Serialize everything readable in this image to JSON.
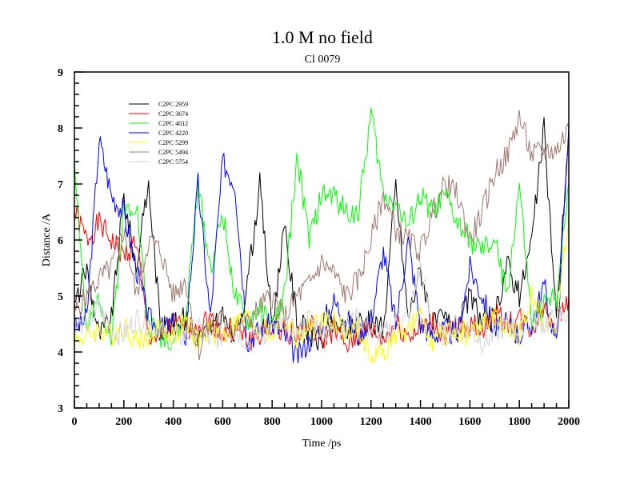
{
  "chart_data": {
    "type": "line",
    "title": "1.0 M no field",
    "subtitle": "Cl 0079",
    "xlabel": "Time /ps",
    "ylabel": "Distance /A",
    "xlim": [
      0,
      2000
    ],
    "ylim": [
      3,
      9
    ],
    "xticks": [
      0,
      200,
      400,
      600,
      800,
      1000,
      1200,
      1400,
      1600,
      1800,
      2000
    ],
    "yticks": [
      3,
      4,
      5,
      6,
      7,
      8,
      9
    ],
    "grid": false,
    "legend_position": "top-left",
    "x": [
      0,
      50,
      100,
      150,
      200,
      250,
      300,
      350,
      400,
      450,
      500,
      550,
      600,
      650,
      700,
      750,
      800,
      850,
      900,
      950,
      1000,
      1050,
      1100,
      1150,
      1200,
      1250,
      1300,
      1350,
      1400,
      1450,
      1500,
      1550,
      1600,
      1650,
      1700,
      1750,
      1800,
      1850,
      1900,
      1950,
      2000
    ],
    "series": [
      {
        "name": "C2PC 2959",
        "color": "#000000",
        "values": [
          4.8,
          5.5,
          4.3,
          4.6,
          6.8,
          5.5,
          7.0,
          4.4,
          4.5,
          4.6,
          4.3,
          4.4,
          4.6,
          4.3,
          5.2,
          7.0,
          4.5,
          6.2,
          4.6,
          4.3,
          4.2,
          4.5,
          4.4,
          4.6,
          4.5,
          4.4,
          7.0,
          4.6,
          5.5,
          4.5,
          4.6,
          4.4,
          5.0,
          4.5,
          4.6,
          5.6,
          5.0,
          6.0,
          8.0,
          4.6,
          8.0
        ]
      },
      {
        "name": "C2PC 3674",
        "color": "#ff0000",
        "values": [
          6.5,
          6.0,
          6.3,
          6.0,
          5.7,
          6.0,
          4.3,
          4.2,
          4.5,
          4.4,
          4.5,
          4.6,
          4.3,
          4.4,
          4.2,
          4.3,
          4.5,
          4.4,
          4.3,
          4.5,
          4.2,
          4.4,
          4.1,
          4.3,
          4.4,
          4.2,
          4.5,
          4.3,
          4.4,
          4.5,
          4.3,
          4.4,
          4.5,
          4.4,
          4.7,
          4.5,
          4.6,
          4.4,
          4.8,
          4.5,
          5.0
        ]
      },
      {
        "name": "C2PC 4012",
        "color": "#00ff00",
        "values": [
          7.5,
          4.3,
          5.0,
          4.2,
          6.5,
          6.7,
          4.5,
          4.3,
          4.2,
          4.6,
          7.0,
          5.5,
          6.5,
          5.0,
          4.5,
          4.8,
          4.4,
          5.0,
          7.5,
          6.0,
          6.8,
          6.8,
          6.5,
          6.5,
          8.3,
          6.8,
          6.7,
          6.2,
          6.8,
          6.5,
          6.8,
          6.3,
          6.0,
          5.8,
          6.0,
          5.0,
          7.0,
          4.5,
          4.8,
          5.0,
          7.0
        ]
      },
      {
        "name": "C2PC 4220",
        "color": "#0000ff",
        "values": [
          4.4,
          4.6,
          7.8,
          6.8,
          6.5,
          5.5,
          4.6,
          4.4,
          4.5,
          4.3,
          7.0,
          4.6,
          7.4,
          7.0,
          4.2,
          4.4,
          4.5,
          4.3,
          3.9,
          4.2,
          4.5,
          4.9,
          4.6,
          4.3,
          4.6,
          5.8,
          4.5,
          6.0,
          4.5,
          4.3,
          4.4,
          4.3,
          5.5,
          5.0,
          4.4,
          4.5,
          4.3,
          4.5,
          5.2,
          4.1,
          8.0
        ]
      },
      {
        "name": "C2PC 5299",
        "color": "#ffff00",
        "values": [
          4.2,
          4.3,
          4.4,
          4.3,
          4.5,
          4.2,
          4.3,
          4.4,
          4.3,
          4.5,
          4.2,
          4.4,
          4.3,
          4.5,
          4.6,
          4.4,
          4.3,
          4.6,
          4.2,
          4.4,
          4.5,
          4.6,
          4.3,
          4.4,
          3.9,
          4.0,
          4.3,
          4.4,
          4.6,
          4.2,
          4.3,
          4.4,
          4.3,
          4.5,
          4.6,
          4.4,
          4.3,
          5.0,
          4.6,
          4.4,
          6.5
        ]
      },
      {
        "name": "C2PC 5494",
        "color": "#a07870",
        "values": [
          4.7,
          5.0,
          5.3,
          5.5,
          6.2,
          5.0,
          6.0,
          5.8,
          5.0,
          5.3,
          4.0,
          4.5,
          4.6,
          4.4,
          4.5,
          4.8,
          5.0,
          4.6,
          5.0,
          5.2,
          5.6,
          5.4,
          5.0,
          5.3,
          6.0,
          6.8,
          6.2,
          6.0,
          5.8,
          6.5,
          7.0,
          6.8,
          6.0,
          6.5,
          7.2,
          7.5,
          8.2,
          7.5,
          7.6,
          7.6,
          8.0
        ]
      },
      {
        "name": "C2PC 5754",
        "color": "#d3d3d3",
        "values": [
          4.6,
          4.5,
          4.8,
          4.4,
          4.3,
          4.6,
          4.5,
          4.4,
          4.2,
          4.3,
          4.4,
          4.2,
          4.3,
          4.4,
          4.2,
          4.3,
          4.4,
          4.5,
          4.3,
          4.6,
          4.4,
          4.3,
          4.5,
          4.6,
          4.4,
          4.3,
          4.5,
          4.6,
          5.5,
          4.4,
          4.3,
          4.5,
          4.4,
          4.2,
          4.3,
          4.5,
          4.4,
          4.6,
          4.5,
          4.6,
          4.7
        ]
      }
    ]
  }
}
